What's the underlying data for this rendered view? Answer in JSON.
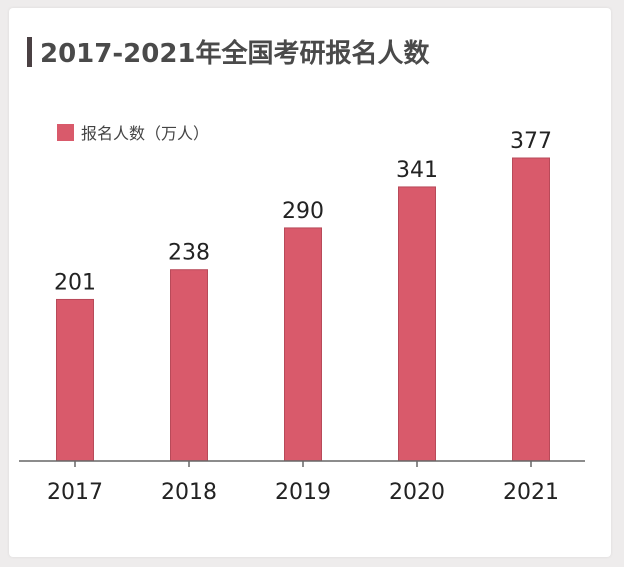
{
  "title": "2017-2021年全国考研报名人数",
  "colors": {
    "bar": "#d95a6b",
    "bar_edge": "#b84a59",
    "axis": "#666666"
  },
  "chart_data": {
    "type": "bar",
    "title": "2017-2021年全国考研报名人数",
    "categories": [
      "2017",
      "2018",
      "2019",
      "2020",
      "2021"
    ],
    "series": [
      {
        "name": "报名人数（万人）",
        "values": [
          201,
          238,
          290,
          341,
          377
        ]
      }
    ],
    "ylim": [
      0,
      377
    ],
    "grid": false,
    "legend": "top-left"
  }
}
